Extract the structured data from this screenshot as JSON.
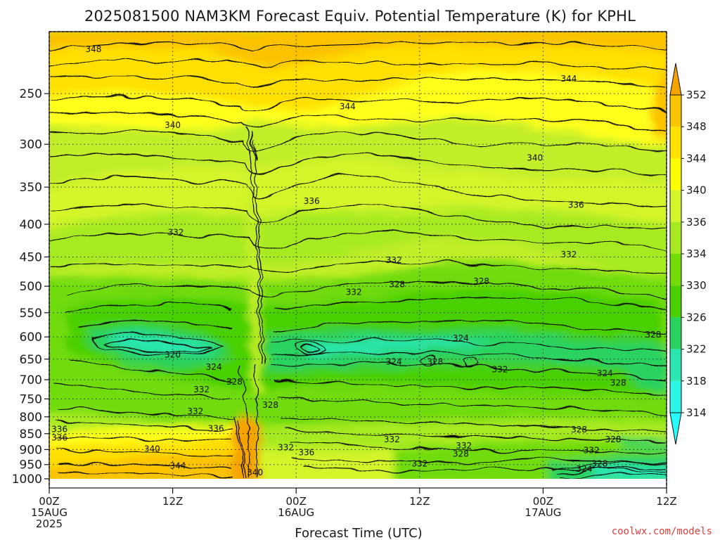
{
  "chart_data": {
    "type": "heatmap",
    "title": "2025081500 NAM3KM Forecast Equiv. Potential Temperature (K) for KPHL",
    "xlabel": "Forecast Time (UTC)",
    "ylabel": "",
    "credit": "coolwx.com/models",
    "y_scale": "log",
    "y_inverted": true,
    "ylim": [
      1000,
      200
    ],
    "y_ticks": [
      250,
      300,
      350,
      400,
      450,
      500,
      550,
      600,
      650,
      700,
      750,
      800,
      850,
      900,
      950,
      1000
    ],
    "x_range_hours": [
      0,
      60
    ],
    "x_ticks": [
      {
        "hour": 0,
        "lines": [
          "00Z",
          "15AUG",
          "2025"
        ]
      },
      {
        "hour": 12,
        "lines": [
          "12Z"
        ]
      },
      {
        "hour": 24,
        "lines": [
          "00Z",
          "16AUG"
        ]
      },
      {
        "hour": 36,
        "lines": [
          "12Z"
        ]
      },
      {
        "hour": 48,
        "lines": [
          "00Z",
          "17AUG"
        ]
      },
      {
        "hour": 60,
        "lines": [
          "12Z"
        ]
      }
    ],
    "grid": true,
    "colorbar": {
      "ticks": [
        352,
        348,
        344,
        340,
        336,
        334,
        330,
        326,
        322,
        318,
        314
      ],
      "colors": [
        "#f5a300",
        "#fbc400",
        "#ffe200",
        "#ffff00",
        "#d2f52c",
        "#a8ea22",
        "#73dc08",
        "#4ad000",
        "#2ad360",
        "#2be6b0",
        "#2cf6e6",
        "#25ffff"
      ],
      "extend": "both"
    },
    "contour_labels": [
      {
        "text": "348",
        "hour": 4.3,
        "p": 213
      },
      {
        "text": "344",
        "hour": 50.5,
        "p": 237
      },
      {
        "text": "344",
        "hour": 29.0,
        "p": 262
      },
      {
        "text": "340",
        "hour": 12.0,
        "p": 280
      },
      {
        "text": "340",
        "hour": 47.2,
        "p": 315
      },
      {
        "text": "336",
        "hour": 25.5,
        "p": 368
      },
      {
        "text": "336",
        "hour": 51.2,
        "p": 373
      },
      {
        "text": "332",
        "hour": 12.3,
        "p": 412
      },
      {
        "text": "332",
        "hour": 33.5,
        "p": 455
      },
      {
        "text": "332",
        "hour": 50.5,
        "p": 446
      },
      {
        "text": "332",
        "hour": 29.6,
        "p": 511
      },
      {
        "text": "328",
        "hour": 33.8,
        "p": 497
      },
      {
        "text": "328",
        "hour": 42.0,
        "p": 491
      },
      {
        "text": "324",
        "hour": 40.0,
        "p": 603
      },
      {
        "text": "328",
        "hour": 58.7,
        "p": 595
      },
      {
        "text": "320",
        "hour": 12.0,
        "p": 640
      },
      {
        "text": "324",
        "hour": 16.0,
        "p": 669
      },
      {
        "text": "324",
        "hour": 33.5,
        "p": 656
      },
      {
        "text": "328",
        "hour": 37.5,
        "p": 656
      },
      {
        "text": "332",
        "hour": 43.8,
        "p": 675
      },
      {
        "text": "324",
        "hour": 54.0,
        "p": 684
      },
      {
        "text": "328",
        "hour": 18.0,
        "p": 705
      },
      {
        "text": "332",
        "hour": 14.8,
        "p": 725
      },
      {
        "text": "328",
        "hour": 55.3,
        "p": 708
      },
      {
        "text": "328",
        "hour": 21.5,
        "p": 767
      },
      {
        "text": "332",
        "hour": 14.2,
        "p": 784
      },
      {
        "text": "336",
        "hour": 16.2,
        "p": 835
      },
      {
        "text": "336",
        "hour": 1.0,
        "p": 837
      },
      {
        "text": "336",
        "hour": 1.0,
        "p": 862
      },
      {
        "text": "328",
        "hour": 51.5,
        "p": 838
      },
      {
        "text": "332",
        "hour": 33.3,
        "p": 868
      },
      {
        "text": "328",
        "hour": 54.8,
        "p": 868
      },
      {
        "text": "332",
        "hour": 40.3,
        "p": 888
      },
      {
        "text": "332",
        "hour": 23.0,
        "p": 893
      },
      {
        "text": "332",
        "hour": 52.7,
        "p": 903
      },
      {
        "text": "336",
        "hour": 25.0,
        "p": 910
      },
      {
        "text": "340",
        "hour": 10.0,
        "p": 898
      },
      {
        "text": "328",
        "hour": 40.0,
        "p": 914
      },
      {
        "text": "344",
        "hour": 12.5,
        "p": 954
      },
      {
        "text": "332",
        "hour": 36.0,
        "p": 947
      },
      {
        "text": "328",
        "hour": 53.5,
        "p": 947
      },
      {
        "text": "324",
        "hour": 52.0,
        "p": 965
      },
      {
        "text": "340",
        "hour": 20.0,
        "p": 978
      }
    ]
  }
}
